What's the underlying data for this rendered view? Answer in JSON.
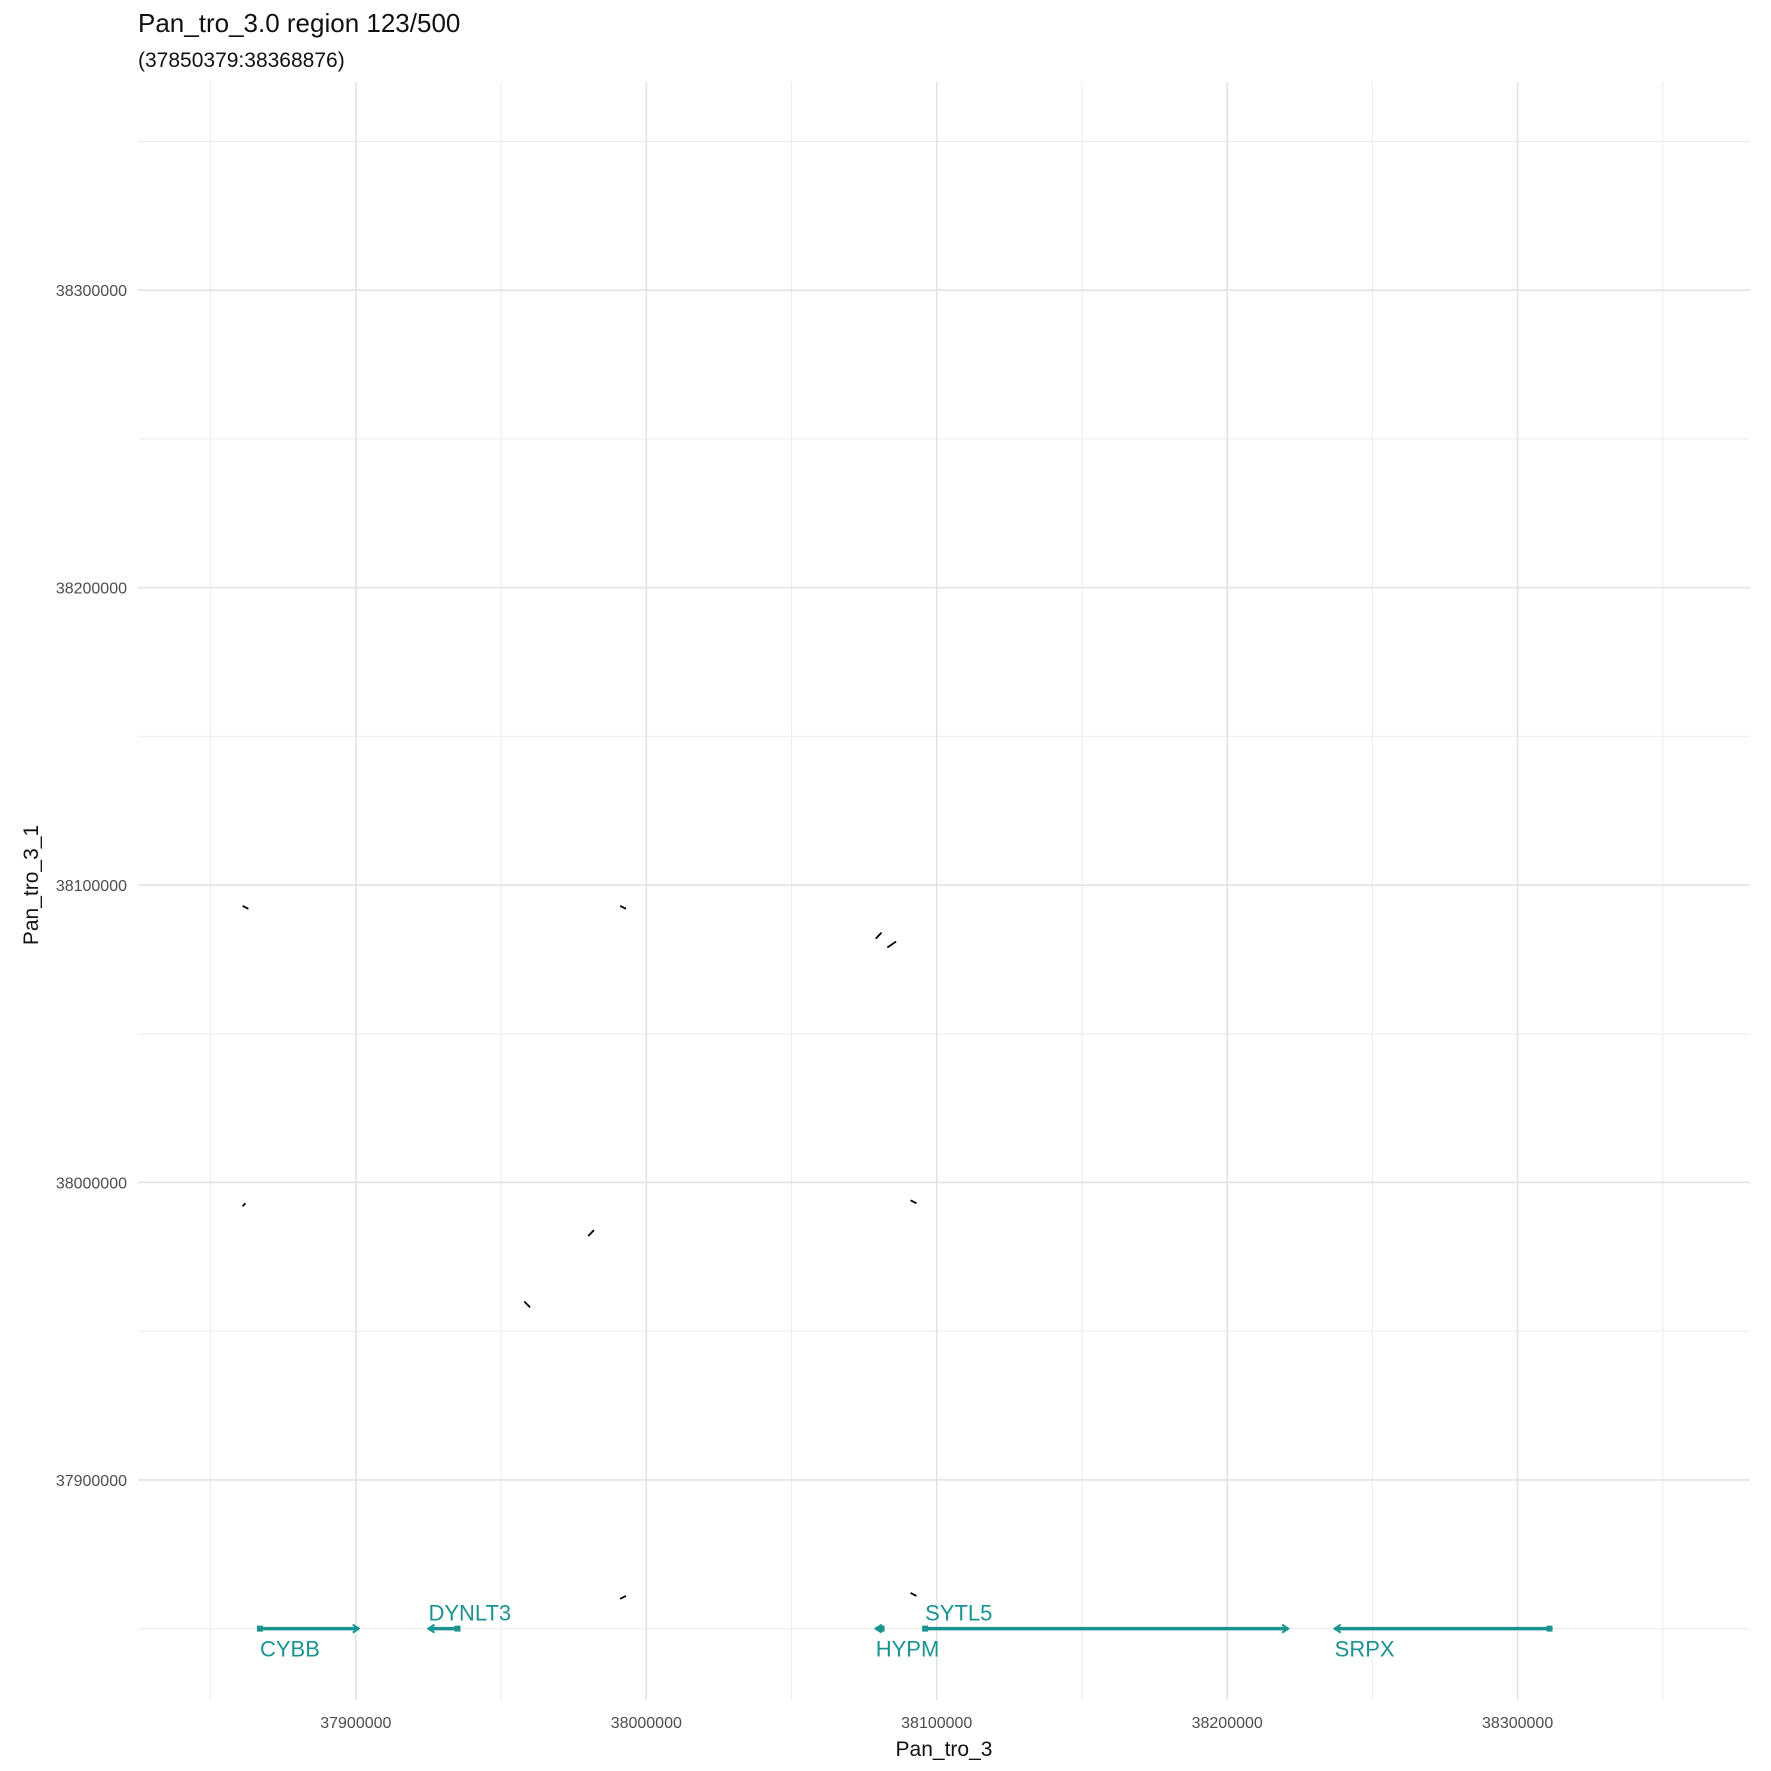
{
  "chart_data": {
    "type": "scatter",
    "title": "Pan_tro_3.0 region 123/500",
    "subtitle": "(37850379:38368876)",
    "xlabel": "Pan_tro_3",
    "ylabel": "Pan_tro_3_1",
    "xlim": [
      37825000,
      38380000
    ],
    "ylim": [
      37826000,
      38370000
    ],
    "x_ticks": [
      37900000,
      38000000,
      38100000,
      38200000,
      38300000
    ],
    "y_ticks": [
      37900000,
      38000000,
      38100000,
      38200000,
      38300000
    ],
    "grid": true,
    "gene_color": "#1a9391",
    "segment_color": "#000000",
    "segments": [
      {
        "x": [
          37861000,
          37863000
        ],
        "y": [
          38093000,
          38092000
        ]
      },
      {
        "x": [
          37861000,
          37862000
        ],
        "y": [
          37992000,
          37993000
        ]
      },
      {
        "x": [
          37991000,
          37993000
        ],
        "y": [
          38093000,
          38092000
        ]
      },
      {
        "x": [
          37980000,
          37982000
        ],
        "y": [
          37982000,
          37984000
        ]
      },
      {
        "x": [
          37958000,
          37960000
        ],
        "y": [
          37960000,
          37958000
        ]
      },
      {
        "x": [
          37991000,
          37993000
        ],
        "y": [
          37860000,
          37861000
        ]
      },
      {
        "x": [
          38079000,
          38081000
        ],
        "y": [
          38082000,
          38084000
        ]
      },
      {
        "x": [
          38083000,
          38086000
        ],
        "y": [
          38079000,
          38081000
        ]
      },
      {
        "x": [
          38091000,
          38093000
        ],
        "y": [
          37994000,
          37993000
        ]
      },
      {
        "x": [
          38091000,
          38093000
        ],
        "y": [
          37862000,
          37861000
        ]
      }
    ],
    "genes": [
      {
        "name": "CYBB",
        "start": 37867000,
        "end": 37901000,
        "strand": "+",
        "label_pos": "below"
      },
      {
        "name": "DYNLT3",
        "start": 37925000,
        "end": 37935000,
        "strand": "-",
        "label_pos": "above"
      },
      {
        "name": "HYPM",
        "start": 38079000,
        "end": 38081000,
        "strand": "-",
        "label_pos": "below"
      },
      {
        "name": "SYTL5",
        "start": 38096000,
        "end": 38221000,
        "strand": "+",
        "label_pos": "above"
      },
      {
        "name": "SRPX",
        "start": 38237000,
        "end": 38311000,
        "strand": "-",
        "label_pos": "below"
      }
    ]
  }
}
